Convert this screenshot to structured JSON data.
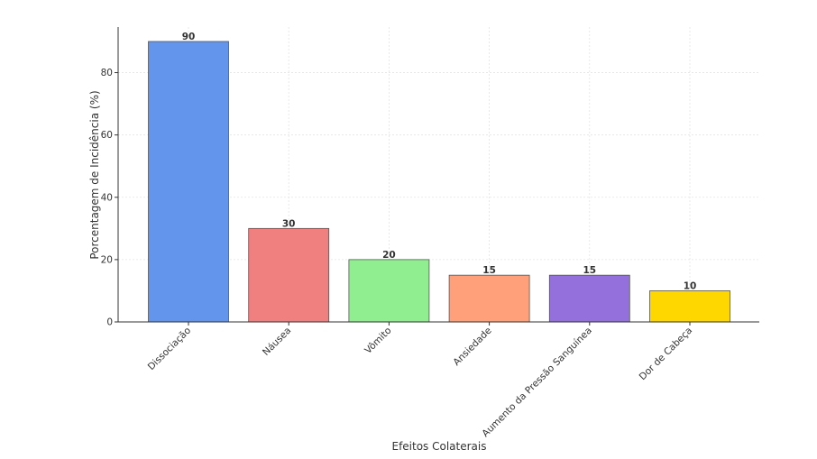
{
  "chart_data": {
    "type": "bar",
    "title": "",
    "xlabel": "Efeitos Colaterais",
    "ylabel": "Porcentagem de Incidência (%)",
    "categories": [
      "Dissociação",
      "Náusea",
      "Vômito",
      "Ansiedade",
      "Aumento da Pressão Sanguínea",
      "Dor de Cabeça"
    ],
    "values": [
      90,
      30,
      20,
      15,
      15,
      10
    ],
    "colors": [
      "#6495ed",
      "#f08080",
      "#90ee90",
      "#ffa07a",
      "#9370db",
      "#ffd700"
    ],
    "ylim": [
      0,
      94.5
    ],
    "yticks": [
      0,
      20,
      40,
      60,
      80
    ],
    "grid": true,
    "legend": "none"
  }
}
